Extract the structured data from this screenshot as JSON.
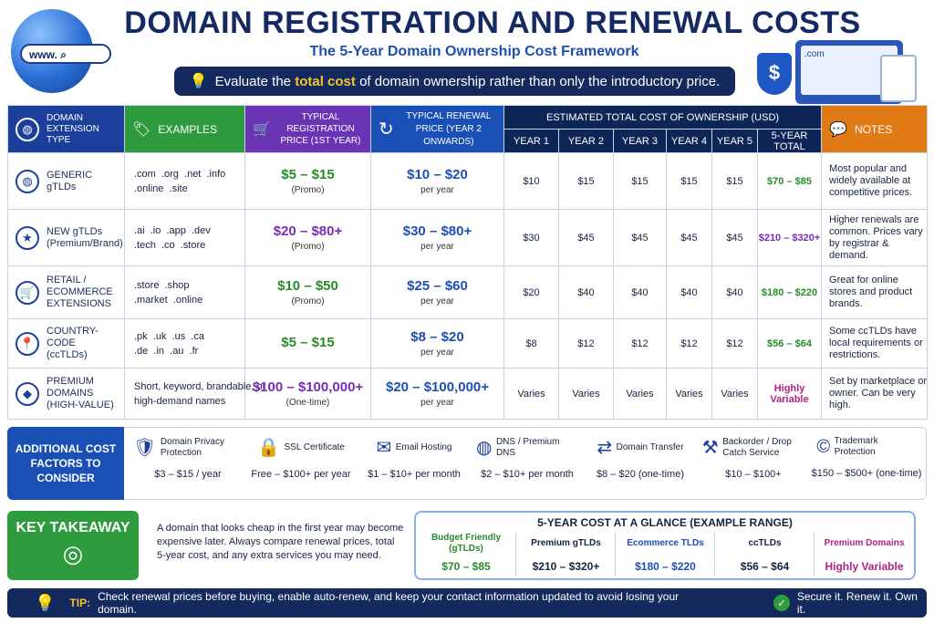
{
  "header": {
    "title": "DOMAIN REGISTRATION AND RENEWAL COSTS",
    "subtitle": "The 5-Year Domain Ownership Cost Framework",
    "banner_pre": "Evaluate the",
    "banner_highlight": "total cost",
    "banner_post": "of domain ownership rather than only the introductory price.",
    "url_text": "www.",
    "laptop_text": ".com",
    "shield_symbol": "$"
  },
  "table": {
    "headers": {
      "type": "DOMAIN EXTENSION TYPE",
      "examples": "EXAMPLES",
      "registration": "TYPICAL REGISTRATION PRICE (1ST YEAR)",
      "renewal": "TYPICAL RENEWAL PRICE (YEAR 2 ONWARDS)",
      "tco": "ESTIMATED TOTAL COST OF OWNERSHIP (USD)",
      "notes": "NOTES"
    },
    "tco_subheaders": [
      "YEAR 1",
      "YEAR 2",
      "YEAR 3",
      "YEAR 4",
      "YEAR 5",
      "5-YEAR TOTAL"
    ],
    "rows": [
      {
        "type": "GENERIC gTLDs",
        "icon": "globe-icon",
        "glyph": "◍",
        "examples_l1": ".com  .org  .net  .info",
        "examples_l2": ".online  .site",
        "reg": "$5 – $15",
        "reg_note": "(Promo)",
        "ren": "$10 – $20",
        "ren_note": "per year",
        "years": [
          "$10",
          "$15",
          "$15",
          "$15",
          "$15"
        ],
        "total": "$70 – $85",
        "notes": "Most popular and widely available at competitive prices."
      },
      {
        "type": "NEW gTLDs (Premium/Brand)",
        "icon": "star-icon",
        "glyph": "★",
        "examples_l1": ".ai  .io  .app  .dev",
        "examples_l2": ".tech  .co  .store",
        "reg": "$20 – $80+",
        "reg_note": "(Promo)",
        "ren": "$30 – $80+",
        "ren_note": "per year",
        "years": [
          "$30",
          "$45",
          "$45",
          "$45",
          "$45"
        ],
        "total": "$210 – $320+",
        "notes": "Higher renewals are common. Prices vary by registrar & demand."
      },
      {
        "type": "RETAIL / ECOMMERCE EXTENSIONS",
        "icon": "cart-icon",
        "glyph": "🛒",
        "examples_l1": ".store  .shop",
        "examples_l2": ".market  .online",
        "reg": "$10 – $50",
        "reg_note": "(Promo)",
        "ren": "$25 – $60",
        "ren_note": "per year",
        "years": [
          "$20",
          "$40",
          "$40",
          "$40",
          "$40"
        ],
        "total": "$180 – $220",
        "notes": "Great for online stores and product brands."
      },
      {
        "type": "COUNTRY-CODE (ccTLDs)",
        "icon": "map-pin-icon",
        "glyph": "📍",
        "examples_l1": ".pk  .uk  .us  .ca",
        "examples_l2": ".de  .in  .au  .fr",
        "reg": "$5 – $15",
        "reg_note": "",
        "ren": "$8 – $20",
        "ren_note": "per year",
        "years": [
          "$8",
          "$12",
          "$12",
          "$12",
          "$12"
        ],
        "total": "$56 – $64",
        "notes": "Some ccTLDs have local requirements or restrictions."
      },
      {
        "type": "PREMIUM DOMAINS (HIGH-VALUE)",
        "icon": "diamond-icon",
        "glyph": "◆",
        "examples_l1": "Short, keyword, brandable, or",
        "examples_l2": "high-demand names",
        "reg": "$100 – $100,000+",
        "reg_note": "(One-time)",
        "ren": "$20 – $100,000+",
        "ren_note": "per year",
        "years": [
          "Varies",
          "Varies",
          "Varies",
          "Varies",
          "Varies"
        ],
        "total": "Highly Variable",
        "notes": "Set by marketplace or owner. Can be very high."
      }
    ]
  },
  "additional": {
    "label": "ADDITIONAL COST FACTORS TO CONSIDER",
    "factors": [
      {
        "name": "Domain Privacy Protection",
        "price": "$3 – $15 / year",
        "icon": "shield-icon",
        "glyph": "🛡"
      },
      {
        "name": "SSL Certificate",
        "price": "Free – $100+ per year",
        "icon": "lock-icon",
        "glyph": "🔒"
      },
      {
        "name": "Email Hosting",
        "price": "$1 – $10+ per month",
        "icon": "envelope-icon",
        "glyph": "✉"
      },
      {
        "name": "DNS / Premium DNS",
        "price": "$2 – $10+ per month",
        "icon": "globe-icon",
        "glyph": "◍"
      },
      {
        "name": "Domain Transfer",
        "price": "$8 – $20 (one-time)",
        "icon": "transfer-icon",
        "glyph": "⇄"
      },
      {
        "name": "Backorder / Drop Catch Service",
        "price": "$10 – $100+",
        "icon": "gavel-icon",
        "glyph": "⚒"
      },
      {
        "name": "Trademark Protection",
        "price": "$150 – $500+ (one-time)",
        "icon": "copyright-icon",
        "glyph": "©"
      }
    ]
  },
  "takeaway": {
    "label": "KEY TAKEAWAY",
    "icon_glyph": "◎",
    "text": "A domain that looks cheap in the first year may become expensive later. Always compare renewal prices, total 5-year cost, and any extra services you may need."
  },
  "glance": {
    "title": "5-YEAR COST AT A GLANCE (EXAMPLE RANGE)",
    "columns": [
      {
        "name": "Budget Friendly (gTLDs)",
        "value": "$70 – $85",
        "color": "#2a8a2a"
      },
      {
        "name": "Premium gTLDs",
        "value": "$210 – $320+",
        "color": "#17233f"
      },
      {
        "name": "Ecommerce TLDs",
        "value": "$180 – $220",
        "color": "#1d4fb5"
      },
      {
        "name": "ccTLDs",
        "value": "$56 – $64",
        "color": "#17233f"
      },
      {
        "name": "Premium Domains",
        "value": "Highly Variable",
        "color": "#b0208a"
      }
    ]
  },
  "tip": {
    "label": "TIP:",
    "text": "Check renewal prices before buying, enable auto-renew, and keep your contact information updated to avoid losing your domain.",
    "slogan": "Secure it. Renew it. Own it."
  },
  "colors": {
    "navy": "#142a5c",
    "green": "#2f9b3f",
    "purple": "#6a35b4",
    "blue": "#1a4fb5",
    "orange": "#e07a15",
    "gold": "#f4c430"
  }
}
